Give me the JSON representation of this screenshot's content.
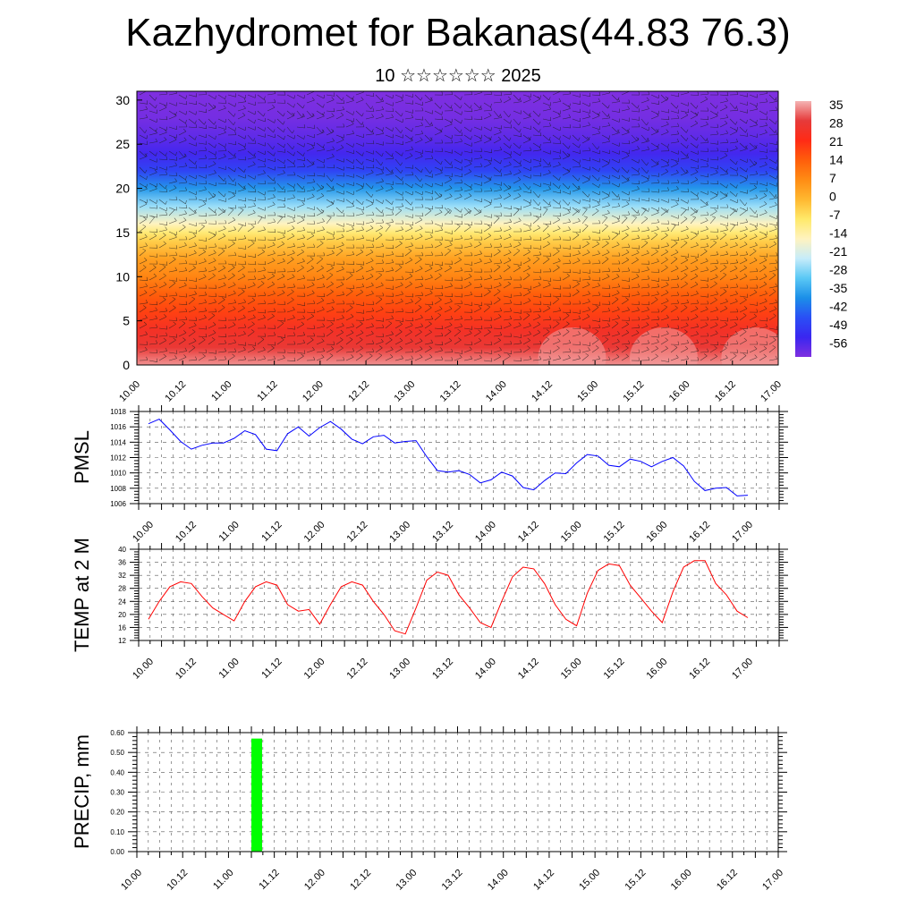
{
  "title": "Kazhydromet for Bakanas(44.83 76.3)",
  "subtitle": "10 ☆☆☆☆☆☆ 2025",
  "time_labels": [
    "10.00",
    "10.12",
    "11.00",
    "11.12",
    "12.00",
    "12.12",
    "13.00",
    "13.12",
    "14.00",
    "14.12",
    "15.00",
    "15.12",
    "16.00",
    "16.12",
    "17.00"
  ],
  "chart_data": [
    {
      "type": "heatmap",
      "title": "Kazhydromet for Bakanas(44.83 76.3)",
      "subtitle": "10 ☆☆☆☆☆☆ 2025",
      "x_categories": [
        "10.00",
        "10.12",
        "11.00",
        "11.12",
        "12.00",
        "12.12",
        "13.00",
        "13.12",
        "14.00",
        "14.12",
        "15.00",
        "15.12",
        "16.00",
        "16.12",
        "17.00"
      ],
      "y_ticks": [
        0,
        5,
        10,
        15,
        20,
        25,
        30
      ],
      "ylim": [
        0,
        31
      ],
      "colorbar_labels": [
        "35",
        "28",
        "21",
        "14",
        "7",
        "0",
        "-7",
        "-14",
        "-21",
        "-28",
        "-35",
        "-42",
        "-49",
        "-56"
      ],
      "colorbar_colors": [
        "#f4b4b4",
        "#e63a3a",
        "#ff2b16",
        "#ff5e0b",
        "#ff8c14",
        "#ffb830",
        "#ffe96a",
        "#fff3c0",
        "#c6ecfa",
        "#5ac8f5",
        "#1b8fe8",
        "#2a4ff5",
        "#3a26f0",
        "#7f2fe0"
      ],
      "profile_levels": [
        0,
        2,
        4,
        6,
        8,
        10,
        12,
        14,
        15,
        16,
        18,
        20,
        22,
        24,
        26,
        28,
        31
      ],
      "profile_values": [
        33,
        27,
        24,
        18,
        14,
        8,
        4,
        -3,
        -8,
        -14,
        -24,
        -34,
        -44,
        -50,
        -53,
        -55,
        -58
      ]
    },
    {
      "type": "line",
      "ylabel": "PMSL",
      "yticks": [
        1006,
        1008,
        1010,
        1012,
        1014,
        1016,
        1018
      ],
      "ylim": [
        1006,
        1018
      ],
      "x": [
        0,
        0.25,
        0.5,
        0.75,
        1,
        1.25,
        1.5,
        1.75,
        2,
        2.25,
        2.5,
        2.75,
        3,
        3.25,
        3.5,
        3.75,
        4,
        4.25,
        4.5,
        4.75,
        5,
        5.25,
        5.5,
        5.75,
        6,
        6.25,
        6.5,
        6.75,
        7,
        7.25,
        7.5,
        7.75,
        8,
        8.25,
        8.5,
        8.75,
        9,
        9.25,
        9.5,
        9.75,
        10,
        10.25,
        10.5,
        10.75,
        11,
        11.25,
        11.5,
        11.75,
        12,
        12.25,
        12.5,
        12.75,
        13,
        13.25,
        13.5,
        13.75,
        14
      ],
      "series": [
        {
          "color": "#0000ff",
          "values": [
            1016.4,
            1017.0,
            1015.6,
            1014.1,
            1013.1,
            1013.6,
            1013.9,
            1013.9,
            1014.5,
            1015.5,
            1015.0,
            1013.1,
            1012.9,
            1015.1,
            1016.0,
            1014.8,
            1015.9,
            1016.7,
            1015.7,
            1014.4,
            1013.8,
            1014.7,
            1014.9,
            1013.9,
            1014.1,
            1014.2,
            1012.1,
            1010.3,
            1010.1,
            1010.3,
            1009.8,
            1008.7,
            1009.1,
            1010.1,
            1009.6,
            1008.1,
            1007.8,
            1009.0,
            1010.0,
            1009.9,
            1011.3,
            1012.4,
            1012.2,
            1011.0,
            1010.8,
            1011.8,
            1011.5,
            1010.8,
            1011.5,
            1012.0,
            1010.9,
            1008.9,
            1007.7,
            1008.0,
            1008.1,
            1007.0,
            1007.1
          ]
        }
      ]
    },
    {
      "type": "line",
      "ylabel": "TEMP at 2 M",
      "yticks": [
        12,
        16,
        20,
        24,
        28,
        32,
        36,
        40
      ],
      "ylim": [
        12,
        40
      ],
      "x": [
        0,
        0.25,
        0.5,
        0.75,
        1,
        1.25,
        1.5,
        1.75,
        2,
        2.25,
        2.5,
        2.75,
        3,
        3.25,
        3.5,
        3.75,
        4,
        4.25,
        4.5,
        4.75,
        5,
        5.25,
        5.5,
        5.75,
        6,
        6.25,
        6.5,
        6.75,
        7,
        7.25,
        7.5,
        7.75,
        8,
        8.25,
        8.5,
        8.75,
        9,
        9.25,
        9.5,
        9.75,
        10,
        10.25,
        10.5,
        10.75,
        11,
        11.25,
        11.5,
        11.75,
        12,
        12.25,
        12.5,
        12.75,
        13,
        13.25,
        13.5,
        13.75,
        14
      ],
      "series": [
        {
          "color": "#ff0000",
          "values": [
            18.5,
            24,
            28.5,
            30,
            29.5,
            25.5,
            22,
            20,
            18,
            24,
            28.5,
            30,
            29,
            23,
            21,
            21.5,
            17,
            23,
            28.5,
            30,
            29,
            24,
            20,
            15,
            14,
            22,
            30.5,
            33,
            32,
            26,
            22,
            17.5,
            16,
            24,
            31.5,
            34.5,
            34,
            29.5,
            23,
            18.5,
            16.5,
            26.5,
            33.5,
            35.5,
            35,
            29,
            25,
            21,
            17.5,
            27,
            34.5,
            36.5,
            36.5,
            29.5,
            26,
            21,
            19
          ]
        }
      ]
    },
    {
      "type": "bar",
      "ylabel": "PRECIP, mm",
      "yticks": [
        "0.00",
        "0.10",
        "0.20",
        "0.30",
        "0.40",
        "0.50",
        "0.60"
      ],
      "ylim": [
        0,
        0.6
      ],
      "x": [
        2.5
      ],
      "values": [
        0.57
      ],
      "bar_color": "#00ff00"
    }
  ]
}
